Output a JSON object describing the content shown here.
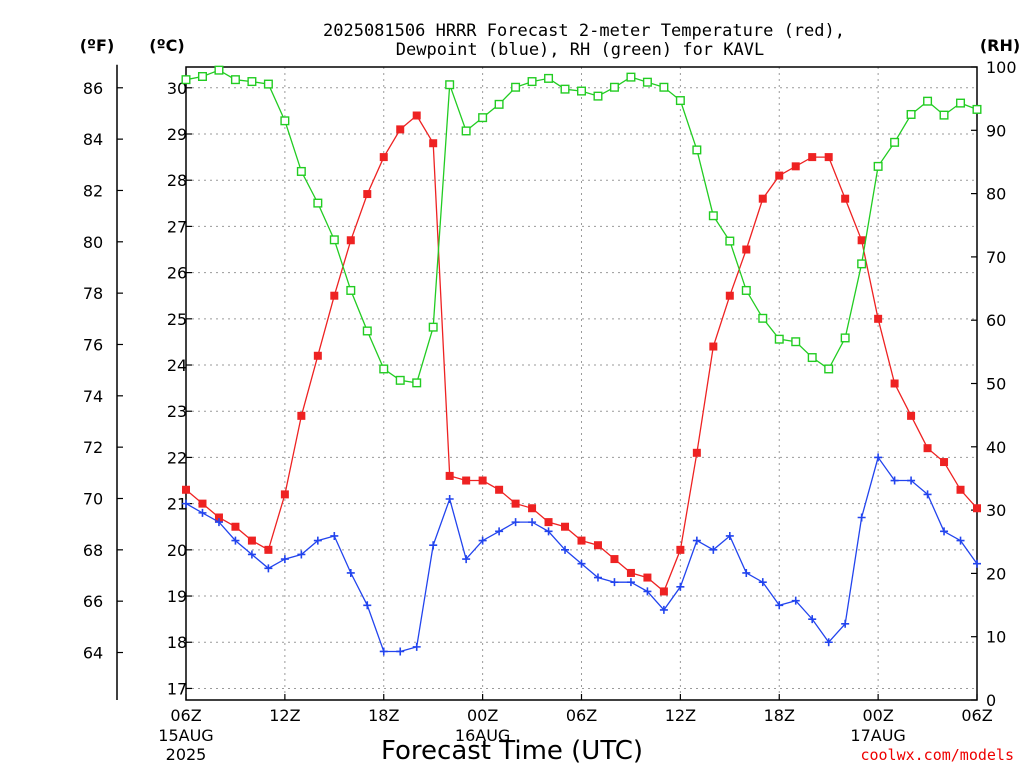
{
  "chart_data": {
    "type": "line",
    "title_lines": [
      "2025081506 HRRR Forecast 2-meter Temperature (red),",
      "Dewpoint (blue), RH (green) for KAVL"
    ],
    "unit_labels": {
      "fahrenheit": "(ºF)",
      "celsius": "(ºC)",
      "rh": "(RH)"
    },
    "xlabel": "Forecast Time (UTC)",
    "watermark": "coolwx.com/models",
    "x_ticks": [
      {
        "label": "06Z",
        "sub": [
          "15AUG",
          "2025"
        ],
        "hour": 0
      },
      {
        "label": "12Z",
        "sub": [],
        "hour": 6
      },
      {
        "label": "18Z",
        "sub": [],
        "hour": 12
      },
      {
        "label": "00Z",
        "sub": [
          "16AUG"
        ],
        "hour": 18
      },
      {
        "label": "06Z",
        "sub": [],
        "hour": 24
      },
      {
        "label": "12Z",
        "sub": [],
        "hour": 30
      },
      {
        "label": "18Z",
        "sub": [],
        "hour": 36
      },
      {
        "label": "00Z",
        "sub": [
          "17AUG"
        ],
        "hour": 42
      },
      {
        "label": "06Z",
        "sub": [],
        "hour": 48
      }
    ],
    "xlim_hours": [
      0,
      48
    ],
    "celsius_ticks": [
      "17",
      "18",
      "19",
      "20",
      "21",
      "22",
      "23",
      "24",
      "25",
      "26",
      "27",
      "28",
      "29",
      "30"
    ],
    "fahrenheit_ticks": [
      "64",
      "66",
      "68",
      "70",
      "72",
      "74",
      "76",
      "78",
      "80",
      "82",
      "84",
      "86"
    ],
    "rh_ticks": [
      "0",
      "10",
      "20",
      "30",
      "40",
      "50",
      "60",
      "70",
      "80",
      "90",
      "100"
    ],
    "ylim_celsius": [
      16.75,
      30.45
    ],
    "ylim_rh": [
      0,
      100
    ],
    "grid": true,
    "series": [
      {
        "name": "Temperature",
        "color": "#ee2222",
        "marker": "filled-square",
        "axis": "celsius",
        "hours": [
          0,
          1,
          2,
          3,
          4,
          5,
          6,
          7,
          8,
          9,
          10,
          11,
          12,
          13,
          14,
          15,
          16,
          17,
          18,
          19,
          20,
          21,
          22,
          23,
          24,
          25,
          26,
          27,
          28,
          29,
          30,
          31,
          32,
          33,
          34,
          35,
          36,
          37,
          38,
          39,
          40,
          41,
          42,
          43,
          44,
          45,
          46,
          47,
          48
        ],
        "values": [
          21.3,
          21.0,
          20.7,
          20.5,
          20.2,
          20.0,
          21.2,
          22.9,
          24.2,
          25.5,
          26.7,
          27.7,
          28.5,
          29.1,
          29.4,
          28.8,
          21.6,
          21.5,
          21.5,
          21.3,
          21.0,
          20.9,
          20.6,
          20.5,
          20.2,
          20.1,
          19.8,
          19.5,
          19.4,
          19.1,
          20.0,
          22.1,
          24.4,
          25.5,
          26.5,
          27.6,
          28.1,
          28.3,
          28.5,
          28.5,
          27.6,
          26.7,
          25.0,
          23.6,
          22.9,
          22.2,
          21.9,
          21.3,
          20.9
        ]
      },
      {
        "name": "Dewpoint",
        "color": "#2244ee",
        "marker": "plus",
        "axis": "celsius",
        "hours": [
          0,
          1,
          2,
          3,
          4,
          5,
          6,
          7,
          8,
          9,
          10,
          11,
          12,
          13,
          14,
          15,
          16,
          17,
          18,
          19,
          20,
          21,
          22,
          23,
          24,
          25,
          26,
          27,
          28,
          29,
          30,
          31,
          32,
          33,
          34,
          35,
          36,
          37,
          38,
          39,
          40,
          41,
          42,
          43,
          44,
          45,
          46,
          47,
          48
        ],
        "values": [
          21.0,
          20.8,
          20.6,
          20.2,
          19.9,
          19.6,
          19.8,
          19.9,
          20.2,
          20.3,
          19.5,
          18.8,
          17.8,
          17.8,
          17.9,
          20.1,
          21.1,
          19.8,
          20.2,
          20.4,
          20.6,
          20.6,
          20.4,
          20.0,
          19.7,
          19.4,
          19.3,
          19.3,
          19.1,
          18.7,
          19.2,
          20.2,
          20.0,
          20.3,
          19.5,
          19.3,
          18.8,
          18.9,
          18.5,
          18.0,
          18.4,
          20.7,
          22.0,
          21.5,
          21.5,
          21.2,
          20.4,
          20.2,
          19.7
        ]
      },
      {
        "name": "RH",
        "color": "#22cc22",
        "marker": "open-square",
        "axis": "rh",
        "hours": [
          0,
          1,
          2,
          3,
          4,
          5,
          6,
          7,
          8,
          9,
          10,
          11,
          12,
          13,
          14,
          15,
          16,
          17,
          18,
          19,
          20,
          21,
          22,
          23,
          24,
          25,
          26,
          27,
          28,
          29,
          30,
          31,
          32,
          33,
          34,
          35,
          36,
          37,
          38,
          39,
          40,
          41,
          42,
          43,
          44,
          45,
          46,
          47,
          48
        ],
        "values": [
          98,
          98.5,
          99.5,
          98,
          97.7,
          97.3,
          91.5,
          83.5,
          78.5,
          72.7,
          64.7,
          58.3,
          52.3,
          50.5,
          50.1,
          58.9,
          97.2,
          89.9,
          92,
          94.1,
          96.8,
          97.7,
          98.2,
          96.5,
          96.2,
          95.4,
          96.8,
          98.4,
          97.6,
          96.8,
          94.7,
          86.9,
          76.5,
          72.5,
          64.7,
          60.3,
          57,
          56.6,
          54.1,
          52.3,
          57.2,
          68.9,
          84.3,
          88.1,
          92.5,
          94.6,
          92.4,
          94.3,
          93.3
        ]
      }
    ]
  }
}
